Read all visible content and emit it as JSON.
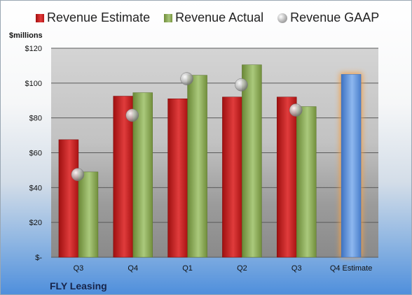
{
  "legend": {
    "estimate": "Revenue Estimate",
    "actual": "Revenue Actual",
    "gaap": "Revenue GAAP"
  },
  "y_unit_label": "$millions",
  "company": "FLY Leasing",
  "colors": {
    "estimate": "#c0392b",
    "actual": "#8aaa55",
    "forecast": "#5b8fd6",
    "forecast_glow": "#f3a04a",
    "gaap": "#a8a8a8"
  },
  "chart_data": {
    "type": "bar",
    "categories": [
      "Q3",
      "Q4",
      "Q1",
      "Q2",
      "Q3",
      "Q4 Estimate"
    ],
    "series": [
      {
        "name": "Revenue Estimate",
        "values": [
          67.5,
          92.5,
          91,
          92,
          92,
          105
        ]
      },
      {
        "name": "Revenue Actual",
        "values": [
          49,
          94.5,
          104.5,
          110.5,
          86.5,
          null
        ]
      },
      {
        "name": "Revenue GAAP",
        "values": [
          47.5,
          81.5,
          102.5,
          99,
          84.5,
          null
        ]
      }
    ],
    "ylim": [
      0,
      120
    ],
    "yticks": [
      0,
      20,
      40,
      60,
      80,
      100,
      120
    ],
    "ytick_labels": [
      "$-",
      "$20",
      "$40",
      "$60",
      "$80",
      "$100",
      "$120"
    ],
    "grid": true,
    "legend_position": "top"
  }
}
